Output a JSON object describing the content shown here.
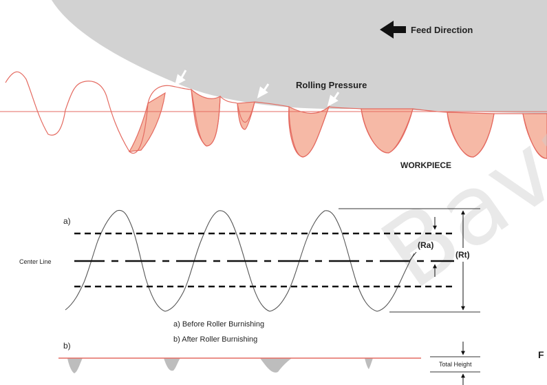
{
  "roller": {
    "feed_direction": "Feed Direction",
    "rolling_pressure": "Rolling Pressure",
    "workpiece": "WORKPIECE"
  },
  "profile": {
    "label_a": "a)",
    "label_b": "b)",
    "center_line": "Center Line",
    "ra": "(Ra)",
    "rt": "(Rt)",
    "legend_a": "a) Before Roller Burnishing",
    "legend_b": "b) After Roller Burnishing",
    "total_height": "Total Height"
  },
  "edge_letter": "F",
  "watermark": "Bava",
  "colors": {
    "roller_fill": "#d2d2d2",
    "material_fill": "#f6b9a6",
    "profile_line": "#e46a60",
    "trace_line": "#555555"
  }
}
